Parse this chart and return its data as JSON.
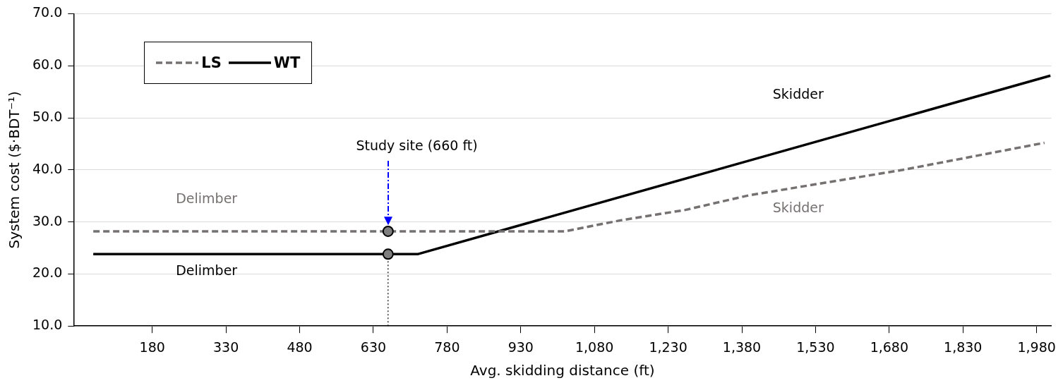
{
  "chart_data": {
    "type": "line",
    "xlabel": "Avg. skidding distance (ft)",
    "ylabel": "System cost ($·BDT⁻¹)",
    "xlim": [
      20,
      2010
    ],
    "xticks": [
      {
        "value": 180,
        "label": "180"
      },
      {
        "value": 330,
        "label": "330"
      },
      {
        "value": 480,
        "label": "480"
      },
      {
        "value": 630,
        "label": "630"
      },
      {
        "value": 780,
        "label": "780"
      },
      {
        "value": 930,
        "label": "930"
      },
      {
        "value": 1080,
        "label": "1,080"
      },
      {
        "value": 1230,
        "label": "1,230"
      },
      {
        "value": 1380,
        "label": "1,380"
      },
      {
        "value": 1530,
        "label": "1,530"
      },
      {
        "value": 1680,
        "label": "1,680"
      },
      {
        "value": 1830,
        "label": "1,830"
      },
      {
        "value": 1980,
        "label": "1,980"
      }
    ],
    "ylim": [
      10,
      70
    ],
    "yticks": [
      {
        "value": 10,
        "label": "10.0"
      },
      {
        "value": 20,
        "label": "20.0"
      },
      {
        "value": 30,
        "label": "30.0"
      },
      {
        "value": 40,
        "label": "40.0"
      },
      {
        "value": 50,
        "label": "50.0"
      },
      {
        "value": 60,
        "label": "60.0"
      },
      {
        "value": 70,
        "label": "70.0"
      }
    ],
    "grid": "y",
    "legend": "top left",
    "marker": "none",
    "series": [
      {
        "name": "LS",
        "color": "#767171",
        "line_style": "dashed",
        "x": [
          60,
          1020,
          1133,
          1265,
          1394,
          1708,
          1996
        ],
        "values": [
          28.2,
          28.2,
          30.3,
          32.3,
          35.1,
          40,
          45.2
        ]
      },
      {
        "name": "WT",
        "color": "#000000",
        "line_style": "solid",
        "x": [
          60,
          720,
          2008
        ],
        "values": [
          23.8,
          23.8,
          58.1
        ]
      },
      {
        "type": "scatter",
        "marker": "circle",
        "color": "#7f7f7f",
        "x": [
          660,
          660
        ],
        "values": [
          28.2,
          23.8
        ]
      }
    ],
    "ref_lines": [
      {
        "axis": "x",
        "value": 660,
        "color": "#000000",
        "line_style": "dotted"
      }
    ],
    "annotations": [
      "Study site (660 ft)",
      "Delimber",
      "Delimber",
      "Skidder",
      "Skidder"
    ]
  }
}
